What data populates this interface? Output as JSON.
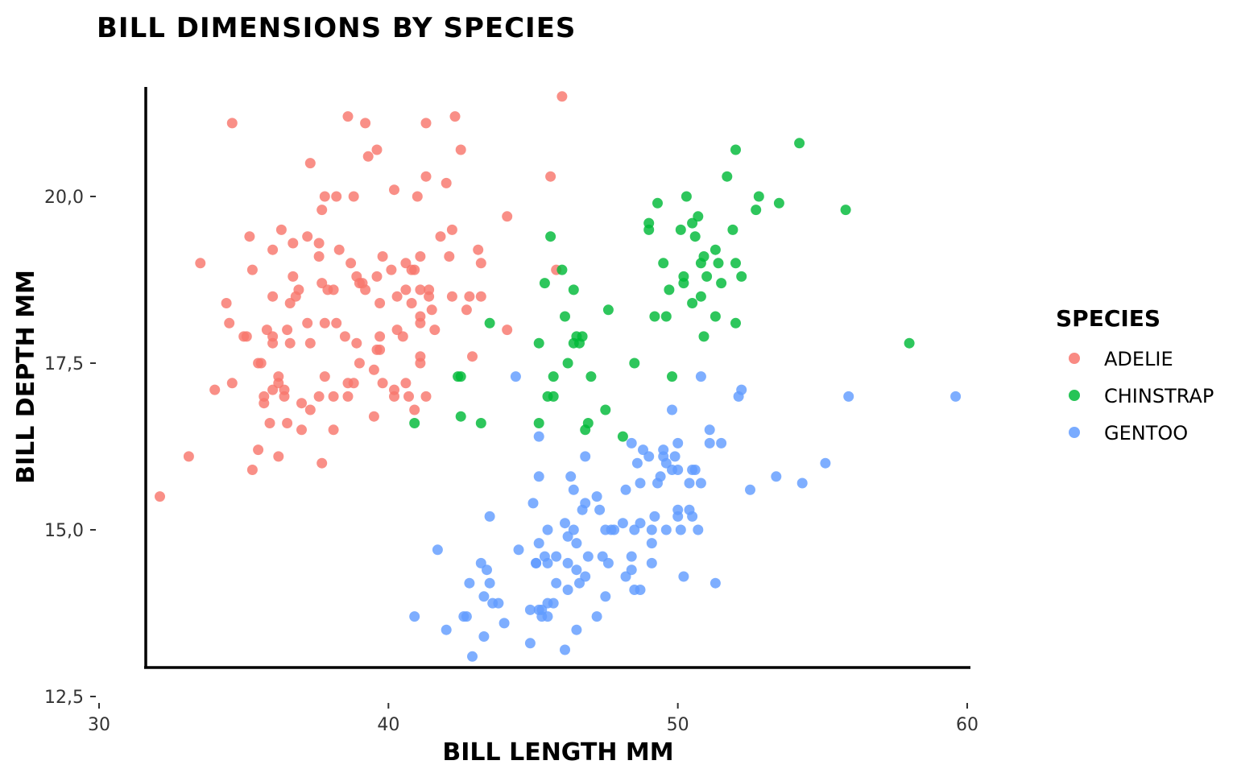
{
  "chart_data": {
    "type": "scatter",
    "title": "BILL DIMENSIONS BY SPECIES",
    "xlabel": "BILL LENGTH MM",
    "ylabel": "BILL DEPTH MM",
    "xlim": [
      30,
      60
    ],
    "ylim": [
      12.5,
      21.5
    ],
    "xticks": [
      30,
      40,
      50,
      60
    ],
    "xtick_labels": [
      "30",
      "40",
      "50",
      "60"
    ],
    "yticks": [
      12.5,
      15.0,
      17.5,
      20.0
    ],
    "ytick_labels": [
      "12,5",
      "15,0",
      "17,5",
      "20,0"
    ],
    "grid": false,
    "legend": {
      "title": "SPECIES",
      "position": "right"
    },
    "series": [
      {
        "name": "ADELIE",
        "color": "#F8766D",
        "points": [
          [
            32.1,
            15.5
          ],
          [
            33.1,
            16.1
          ],
          [
            33.5,
            19.0
          ],
          [
            34.0,
            17.1
          ],
          [
            34.4,
            18.4
          ],
          [
            34.5,
            18.1
          ],
          [
            34.6,
            21.1
          ],
          [
            34.6,
            17.2
          ],
          [
            35.0,
            17.9
          ],
          [
            35.1,
            17.9
          ],
          [
            35.2,
            19.4
          ],
          [
            35.3,
            18.9
          ],
          [
            35.3,
            15.9
          ],
          [
            35.5,
            16.2
          ],
          [
            35.5,
            17.5
          ],
          [
            35.6,
            17.5
          ],
          [
            35.7,
            17.0
          ],
          [
            35.7,
            16.9
          ],
          [
            35.8,
            18.0
          ],
          [
            35.9,
            16.6
          ],
          [
            36.0,
            17.8
          ],
          [
            36.0,
            17.9
          ],
          [
            36.0,
            17.1
          ],
          [
            36.0,
            18.5
          ],
          [
            36.0,
            19.2
          ],
          [
            36.2,
            17.2
          ],
          [
            36.2,
            16.1
          ],
          [
            36.2,
            17.3
          ],
          [
            36.3,
            19.5
          ],
          [
            36.4,
            17.0
          ],
          [
            36.4,
            17.1
          ],
          [
            36.5,
            16.6
          ],
          [
            36.5,
            18.0
          ],
          [
            36.6,
            17.8
          ],
          [
            36.6,
            18.4
          ],
          [
            36.7,
            19.3
          ],
          [
            36.7,
            18.8
          ],
          [
            36.8,
            18.5
          ],
          [
            36.9,
            18.6
          ],
          [
            37.0,
            16.9
          ],
          [
            37.0,
            16.5
          ],
          [
            37.2,
            18.1
          ],
          [
            37.2,
            19.4
          ],
          [
            37.3,
            20.5
          ],
          [
            37.3,
            17.8
          ],
          [
            37.3,
            16.8
          ],
          [
            37.6,
            19.1
          ],
          [
            37.6,
            19.3
          ],
          [
            37.6,
            17.0
          ],
          [
            37.7,
            18.7
          ],
          [
            37.7,
            19.8
          ],
          [
            37.7,
            16.0
          ],
          [
            37.8,
            17.3
          ],
          [
            37.8,
            18.1
          ],
          [
            37.8,
            20.0
          ],
          [
            37.9,
            18.6
          ],
          [
            38.1,
            18.6
          ],
          [
            38.1,
            17.0
          ],
          [
            38.1,
            16.5
          ],
          [
            38.2,
            20.0
          ],
          [
            38.2,
            18.1
          ],
          [
            38.3,
            19.2
          ],
          [
            38.5,
            17.9
          ],
          [
            38.6,
            21.2
          ],
          [
            38.6,
            17.0
          ],
          [
            38.6,
            17.2
          ],
          [
            38.7,
            19.0
          ],
          [
            38.8,
            17.2
          ],
          [
            38.8,
            20.0
          ],
          [
            38.9,
            17.8
          ],
          [
            38.9,
            18.8
          ],
          [
            39.0,
            17.5
          ],
          [
            39.0,
            18.7
          ],
          [
            39.1,
            18.7
          ],
          [
            39.2,
            21.1
          ],
          [
            39.2,
            18.6
          ],
          [
            39.3,
            20.6
          ],
          [
            39.5,
            17.4
          ],
          [
            39.5,
            16.7
          ],
          [
            39.6,
            17.7
          ],
          [
            39.6,
            20.7
          ],
          [
            39.6,
            18.8
          ],
          [
            39.7,
            18.4
          ],
          [
            39.7,
            17.9
          ],
          [
            39.7,
            17.7
          ],
          [
            39.8,
            19.1
          ],
          [
            39.8,
            17.2
          ],
          [
            40.1,
            18.9
          ],
          [
            40.2,
            20.1
          ],
          [
            40.2,
            17.0
          ],
          [
            40.2,
            17.1
          ],
          [
            40.3,
            18.5
          ],
          [
            40.3,
            18.0
          ],
          [
            40.5,
            17.9
          ],
          [
            40.6,
            18.6
          ],
          [
            40.6,
            19.0
          ],
          [
            40.6,
            17.2
          ],
          [
            40.7,
            17.0
          ],
          [
            40.8,
            18.4
          ],
          [
            40.8,
            18.9
          ],
          [
            40.9,
            16.8
          ],
          [
            40.9,
            18.9
          ],
          [
            41.0,
            20.0
          ],
          [
            41.1,
            18.2
          ],
          [
            41.1,
            17.5
          ],
          [
            41.1,
            18.6
          ],
          [
            41.1,
            19.1
          ],
          [
            41.1,
            18.1
          ],
          [
            41.1,
            17.6
          ],
          [
            41.3,
            21.1
          ],
          [
            41.3,
            20.3
          ],
          [
            41.3,
            17.0
          ],
          [
            41.4,
            18.5
          ],
          [
            41.4,
            18.6
          ],
          [
            41.5,
            18.3
          ],
          [
            41.6,
            18.0
          ],
          [
            41.8,
            19.4
          ],
          [
            42.0,
            20.2
          ],
          [
            42.1,
            19.1
          ],
          [
            42.2,
            18.5
          ],
          [
            42.2,
            19.5
          ],
          [
            42.3,
            21.2
          ],
          [
            42.5,
            20.7
          ],
          [
            42.7,
            18.3
          ],
          [
            42.8,
            18.5
          ],
          [
            42.9,
            17.6
          ],
          [
            43.1,
            19.2
          ],
          [
            43.2,
            19.0
          ],
          [
            43.2,
            18.5
          ],
          [
            44.1,
            18.0
          ],
          [
            44.1,
            19.7
          ],
          [
            45.6,
            20.3
          ],
          [
            45.8,
            18.9
          ],
          [
            46.0,
            21.5
          ]
        ]
      },
      {
        "name": "CHINSTRAP",
        "color": "#00BA38",
        "points": [
          [
            40.9,
            16.6
          ],
          [
            42.4,
            17.3
          ],
          [
            42.5,
            16.7
          ],
          [
            42.5,
            17.3
          ],
          [
            43.2,
            16.6
          ],
          [
            43.5,
            18.1
          ],
          [
            45.2,
            17.8
          ],
          [
            45.2,
            16.6
          ],
          [
            45.4,
            18.7
          ],
          [
            45.5,
            17.0
          ],
          [
            45.6,
            19.4
          ],
          [
            45.7,
            17.3
          ],
          [
            45.7,
            17.0
          ],
          [
            46.0,
            18.9
          ],
          [
            46.1,
            18.2
          ],
          [
            46.2,
            17.5
          ],
          [
            46.4,
            18.6
          ],
          [
            46.4,
            17.8
          ],
          [
            46.5,
            17.9
          ],
          [
            46.6,
            17.8
          ],
          [
            46.7,
            17.9
          ],
          [
            46.8,
            16.5
          ],
          [
            46.9,
            16.6
          ],
          [
            47.0,
            17.3
          ],
          [
            47.5,
            16.8
          ],
          [
            47.6,
            18.3
          ],
          [
            48.1,
            16.4
          ],
          [
            48.5,
            17.5
          ],
          [
            49.0,
            19.5
          ],
          [
            49.0,
            19.6
          ],
          [
            49.2,
            18.2
          ],
          [
            49.3,
            19.9
          ],
          [
            49.5,
            19.0
          ],
          [
            49.6,
            18.2
          ],
          [
            49.7,
            18.6
          ],
          [
            49.8,
            17.3
          ],
          [
            50.1,
            19.5
          ],
          [
            50.2,
            18.8
          ],
          [
            50.2,
            18.7
          ],
          [
            50.3,
            20.0
          ],
          [
            50.5,
            18.4
          ],
          [
            50.5,
            19.6
          ],
          [
            50.6,
            19.4
          ],
          [
            50.7,
            19.7
          ],
          [
            50.8,
            18.5
          ],
          [
            50.8,
            19.0
          ],
          [
            50.9,
            19.1
          ],
          [
            50.9,
            17.9
          ],
          [
            51.0,
            18.8
          ],
          [
            51.3,
            18.2
          ],
          [
            51.3,
            19.2
          ],
          [
            51.4,
            19.0
          ],
          [
            51.5,
            18.7
          ],
          [
            51.7,
            20.3
          ],
          [
            51.9,
            19.5
          ],
          [
            52.0,
            18.1
          ],
          [
            52.0,
            20.7
          ],
          [
            52.0,
            19.0
          ],
          [
            52.2,
            18.8
          ],
          [
            52.7,
            19.8
          ],
          [
            52.8,
            20.0
          ],
          [
            53.5,
            19.9
          ],
          [
            54.2,
            20.8
          ],
          [
            55.8,
            19.8
          ],
          [
            58.0,
            17.8
          ]
        ]
      },
      {
        "name": "GENTOO",
        "color": "#619CFF",
        "points": [
          [
            40.9,
            13.7
          ],
          [
            41.7,
            14.7
          ],
          [
            42.0,
            13.5
          ],
          [
            42.6,
            13.7
          ],
          [
            42.7,
            13.7
          ],
          [
            42.8,
            14.2
          ],
          [
            42.9,
            13.1
          ],
          [
            43.2,
            14.5
          ],
          [
            43.3,
            13.4
          ],
          [
            43.3,
            14.0
          ],
          [
            43.4,
            14.4
          ],
          [
            43.5,
            14.2
          ],
          [
            43.5,
            15.2
          ],
          [
            43.6,
            13.9
          ],
          [
            43.8,
            13.9
          ],
          [
            44.0,
            13.6
          ],
          [
            44.4,
            17.3
          ],
          [
            44.5,
            14.7
          ],
          [
            44.9,
            13.3
          ],
          [
            44.9,
            13.8
          ],
          [
            45.0,
            15.4
          ],
          [
            45.1,
            14.5
          ],
          [
            45.1,
            14.5
          ],
          [
            45.2,
            13.8
          ],
          [
            45.2,
            14.8
          ],
          [
            45.2,
            15.8
          ],
          [
            45.2,
            16.4
          ],
          [
            45.3,
            13.7
          ],
          [
            45.3,
            13.8
          ],
          [
            45.4,
            14.6
          ],
          [
            45.5,
            13.7
          ],
          [
            45.5,
            13.9
          ],
          [
            45.5,
            14.5
          ],
          [
            45.5,
            15.0
          ],
          [
            45.7,
            13.9
          ],
          [
            45.8,
            14.2
          ],
          [
            45.8,
            14.6
          ],
          [
            46.1,
            13.2
          ],
          [
            46.1,
            15.1
          ],
          [
            46.2,
            14.1
          ],
          [
            46.2,
            14.5
          ],
          [
            46.2,
            14.9
          ],
          [
            46.3,
            15.8
          ],
          [
            46.4,
            15.0
          ],
          [
            46.4,
            15.6
          ],
          [
            46.5,
            13.5
          ],
          [
            46.5,
            14.4
          ],
          [
            46.5,
            14.8
          ],
          [
            46.6,
            14.2
          ],
          [
            46.7,
            15.3
          ],
          [
            46.8,
            14.3
          ],
          [
            46.8,
            15.4
          ],
          [
            46.8,
            16.1
          ],
          [
            46.9,
            14.6
          ],
          [
            47.2,
            13.7
          ],
          [
            47.2,
            15.5
          ],
          [
            47.3,
            15.3
          ],
          [
            47.4,
            14.6
          ],
          [
            47.5,
            14.0
          ],
          [
            47.5,
            15.0
          ],
          [
            47.6,
            14.5
          ],
          [
            47.7,
            15.0
          ],
          [
            47.8,
            15.0
          ],
          [
            48.1,
            15.1
          ],
          [
            48.2,
            14.3
          ],
          [
            48.2,
            15.6
          ],
          [
            48.4,
            14.4
          ],
          [
            48.4,
            14.6
          ],
          [
            48.4,
            16.3
          ],
          [
            48.5,
            14.1
          ],
          [
            48.5,
            15.0
          ],
          [
            48.6,
            16.0
          ],
          [
            48.7,
            14.1
          ],
          [
            48.7,
            15.1
          ],
          [
            48.7,
            15.7
          ],
          [
            48.8,
            16.2
          ],
          [
            49.0,
            16.1
          ],
          [
            49.1,
            14.5
          ],
          [
            49.1,
            14.8
          ],
          [
            49.1,
            15.0
          ],
          [
            49.2,
            15.2
          ],
          [
            49.3,
            15.7
          ],
          [
            49.4,
            15.8
          ],
          [
            49.5,
            16.1
          ],
          [
            49.5,
            16.2
          ],
          [
            49.6,
            15.0
          ],
          [
            49.6,
            16.0
          ],
          [
            49.8,
            15.9
          ],
          [
            49.8,
            16.8
          ],
          [
            49.9,
            16.1
          ],
          [
            50.0,
            15.2
          ],
          [
            50.0,
            15.3
          ],
          [
            50.0,
            15.9
          ],
          [
            50.0,
            16.3
          ],
          [
            50.1,
            15.0
          ],
          [
            50.2,
            14.3
          ],
          [
            50.4,
            15.3
          ],
          [
            50.4,
            15.7
          ],
          [
            50.5,
            15.2
          ],
          [
            50.5,
            15.9
          ],
          [
            50.6,
            15.9
          ],
          [
            50.7,
            15.0
          ],
          [
            50.8,
            15.7
          ],
          [
            50.8,
            17.3
          ],
          [
            51.1,
            16.3
          ],
          [
            51.1,
            16.5
          ],
          [
            51.3,
            14.2
          ],
          [
            51.5,
            16.3
          ],
          [
            52.1,
            17.0
          ],
          [
            52.2,
            17.1
          ],
          [
            52.5,
            15.6
          ],
          [
            53.4,
            15.8
          ],
          [
            54.3,
            15.7
          ],
          [
            55.1,
            16.0
          ],
          [
            55.9,
            17.0
          ],
          [
            59.6,
            17.0
          ]
        ]
      }
    ]
  }
}
